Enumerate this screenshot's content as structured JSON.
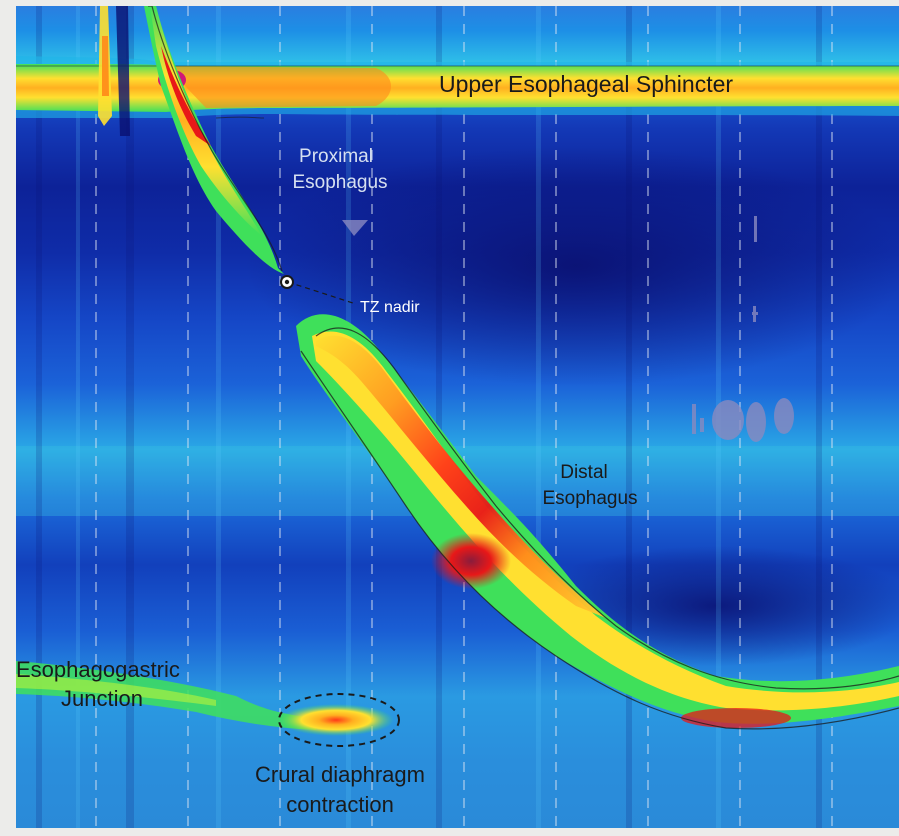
{
  "figure": {
    "labels": {
      "ues": "Upper Esophageal Sphincter",
      "proximal_line1": "Proximal",
      "proximal_line2": "Esophagus",
      "tz": "TZ nadir",
      "distal_line1": "Distal",
      "distal_line2": "Esophagus",
      "egj_line1": "Esophagogastric",
      "egj_line2": "Junction",
      "crural_line1": "Crural diaphragm",
      "crural_line2": "contraction"
    }
  },
  "colors": {
    "background_deep": "#0a1680",
    "background_mid": "#1446c8",
    "cyan": "#3fb8e6",
    "green": "#39e04a",
    "yellow": "#ffe030",
    "orange": "#ff8a1a",
    "red": "#e81818",
    "magenta": "#d01878",
    "purple": "#8a1c3c"
  }
}
